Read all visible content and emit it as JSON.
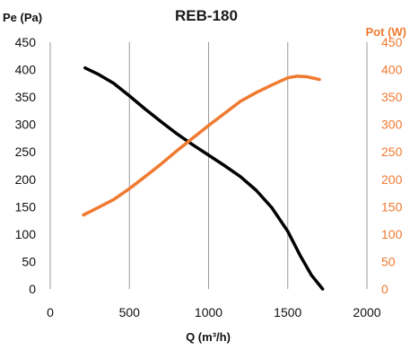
{
  "colors": {
    "pressure": "#000000",
    "power": "#F07A30",
    "grid": "#9a9a9a",
    "axis_text": "#111111"
  },
  "chart_data": {
    "type": "line",
    "title": "REB-180",
    "xlabel": "Q (m³/h)",
    "ylabel_left": "Pe (Pa)",
    "ylabel_right": "Pot (W)",
    "xlim": [
      0,
      2000
    ],
    "ylim_left": [
      0,
      450
    ],
    "ylim_right": [
      0,
      450
    ],
    "x_ticks": [
      "0",
      "500",
      "1000",
      "1500",
      "2000"
    ],
    "y_ticks_left": [
      "0",
      "50",
      "100",
      "150",
      "200",
      "250",
      "300",
      "350",
      "400",
      "450"
    ],
    "y_ticks_right": [
      "0",
      "50",
      "100",
      "150",
      "200",
      "250",
      "300",
      "350",
      "400",
      "450"
    ],
    "grid": "vertical",
    "legend": "none",
    "series": [
      {
        "axis": "left",
        "color": "#000000",
        "points": [
          [
            220,
            403
          ],
          [
            300,
            392
          ],
          [
            400,
            375
          ],
          [
            500,
            352
          ],
          [
            600,
            328
          ],
          [
            700,
            305
          ],
          [
            800,
            283
          ],
          [
            900,
            263
          ],
          [
            1000,
            244
          ],
          [
            1100,
            225
          ],
          [
            1200,
            205
          ],
          [
            1300,
            180
          ],
          [
            1400,
            148
          ],
          [
            1500,
            105
          ],
          [
            1580,
            60
          ],
          [
            1650,
            25
          ],
          [
            1720,
            0
          ]
        ]
      },
      {
        "axis": "right",
        "color": "#F07A30",
        "points": [
          [
            210,
            135
          ],
          [
            300,
            148
          ],
          [
            400,
            163
          ],
          [
            500,
            183
          ],
          [
            600,
            205
          ],
          [
            700,
            228
          ],
          [
            800,
            252
          ],
          [
            900,
            275
          ],
          [
            1000,
            298
          ],
          [
            1100,
            320
          ],
          [
            1200,
            342
          ],
          [
            1300,
            358
          ],
          [
            1400,
            372
          ],
          [
            1500,
            385
          ],
          [
            1560,
            388
          ],
          [
            1620,
            387
          ],
          [
            1700,
            382
          ]
        ]
      }
    ]
  }
}
